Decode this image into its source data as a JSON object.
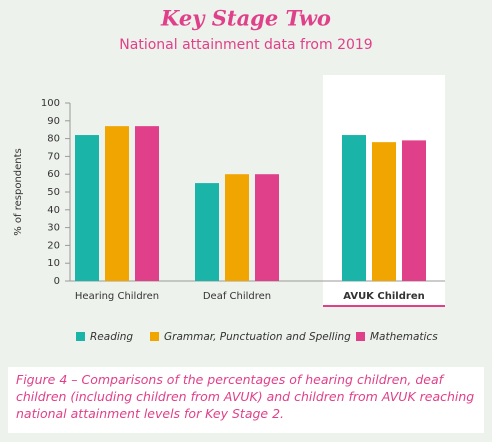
{
  "chart_data": {
    "type": "bar",
    "title": "Key Stage Two",
    "subtitle": "National attainment data from 2019",
    "y_label": "% of respondents",
    "categories": [
      "Hearing Children",
      "Deaf Children",
      "AVUK Children"
    ],
    "series": [
      {
        "name": "Reading",
        "color": "#1ab5a8",
        "values": [
          82,
          55,
          82
        ]
      },
      {
        "name": "Grammar, Punctuation and Spelling",
        "color": "#f0a500",
        "values": [
          87,
          60,
          78
        ]
      },
      {
        "name": "Mathematics",
        "color": "#e0408a",
        "values": [
          87,
          60,
          79
        ]
      }
    ],
    "ylim": [
      0,
      100
    ],
    "yticks": [
      0,
      10,
      20,
      30,
      40,
      50,
      60,
      70,
      80,
      90,
      100
    ],
    "caption": "Figure 4 – Comparisons of the percentages of hearing children, deaf children (including children from AVUK) and children from AVUK reaching national attainment levels for Key Stage 2."
  }
}
